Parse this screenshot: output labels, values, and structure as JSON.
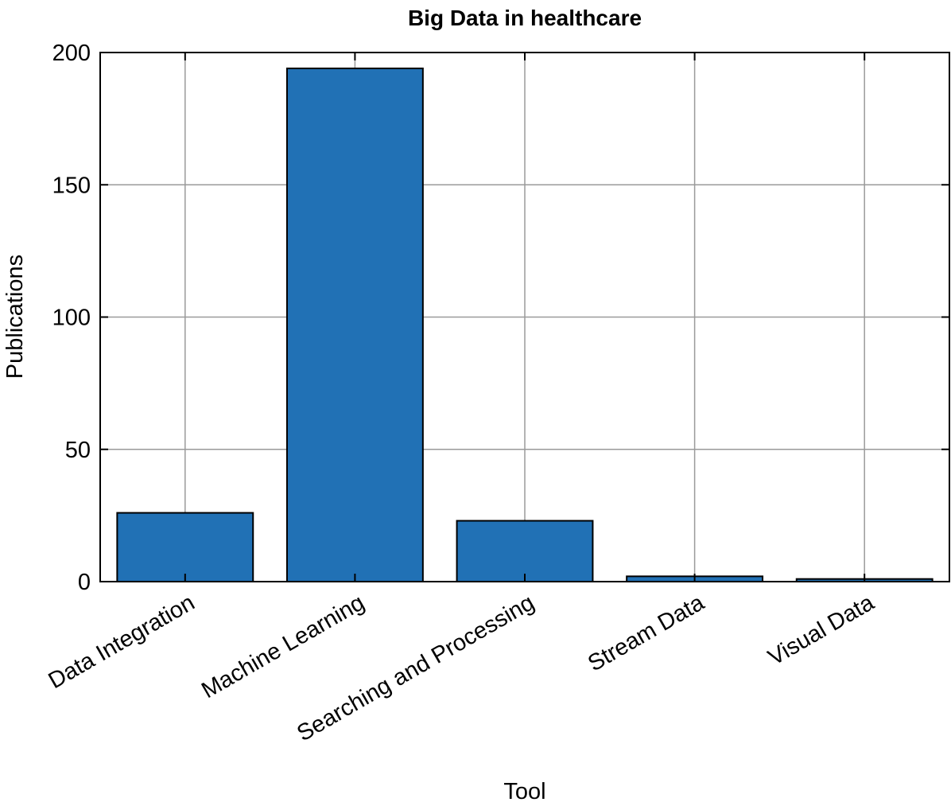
{
  "chart_data": {
    "type": "bar",
    "title": "Big Data in healthcare",
    "xlabel": "Tool",
    "ylabel": "Publications",
    "categories": [
      "Data Integration",
      "Machine Learning",
      "Searching and Processing",
      "Stream Data",
      "Visual Data"
    ],
    "values": [
      26,
      194,
      23,
      2,
      1
    ],
    "ylim": [
      0,
      200
    ],
    "yticks": [
      0,
      50,
      100,
      150,
      200
    ],
    "grid": true,
    "bar_color": "#2171b5",
    "edge_color": "#000000"
  }
}
